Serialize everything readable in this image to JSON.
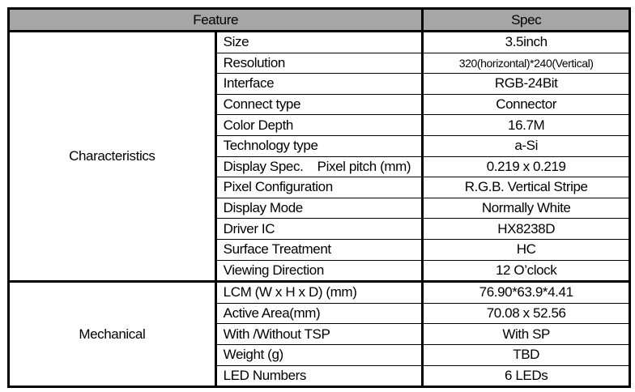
{
  "header": {
    "feature": "Feature",
    "spec": "Spec"
  },
  "groups": [
    {
      "name": "Characteristics",
      "rows": [
        {
          "feature": "Size",
          "spec": "3.5inch"
        },
        {
          "feature": "Resolution",
          "spec": "320(horizontal)*240(Vertical)"
        },
        {
          "feature": "Interface",
          "spec": "RGB-24Bit"
        },
        {
          "feature": "Connect type",
          "spec": "Connector"
        },
        {
          "feature": "Color Depth",
          "spec": "16.7M"
        },
        {
          "feature": "Technology type",
          "spec": "a-Si"
        },
        {
          "feature": "Display Spec.    Pixel pitch (mm)",
          "spec": "0.219 x 0.219"
        },
        {
          "feature": "Pixel Configuration",
          "spec": "R.G.B. Vertical Stripe"
        },
        {
          "feature": "Display Mode",
          "spec": "Normally White"
        },
        {
          "feature": "Driver IC",
          "spec": "HX8238D"
        },
        {
          "feature": "Surface Treatment",
          "spec": "HC"
        },
        {
          "feature": "Viewing Direction",
          "spec": "12 O’clock"
        }
      ]
    },
    {
      "name": "Mechanical",
      "rows": [
        {
          "feature": "LCM (W x H x D) (mm)",
          "spec": "76.90*63.9*4.41"
        },
        {
          "feature": "Active Area(mm)",
          "spec": "70.08 x 52.56"
        },
        {
          "feature": "With /Without TSP",
          "spec": "With SP"
        },
        {
          "feature": "Weight (g)",
          "spec": "TBD"
        },
        {
          "feature": "LED Numbers",
          "spec": "6 LEDs"
        }
      ]
    }
  ]
}
